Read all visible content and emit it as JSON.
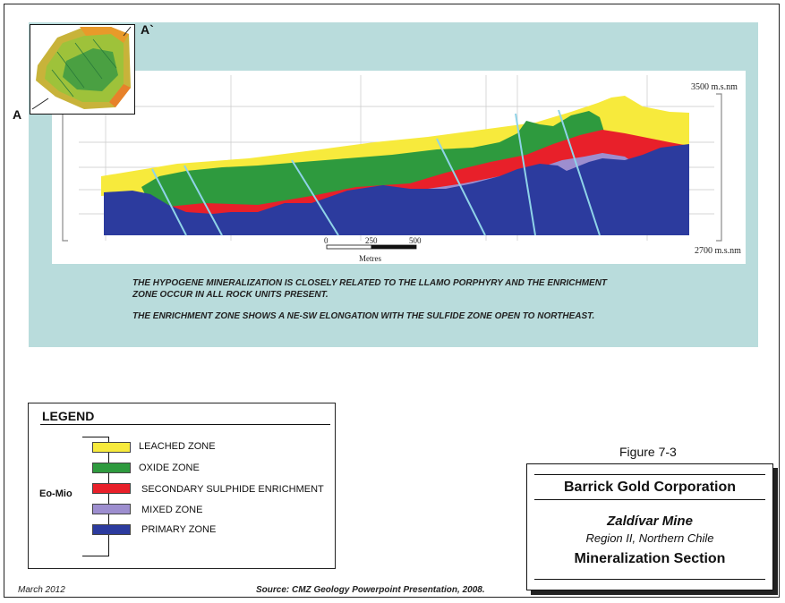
{
  "section": {
    "marker_left": "A",
    "marker_right": "A`",
    "elevation_top": "3500 m.s.nm",
    "elevation_bottom": "2700 m.s.nm",
    "scale_ticks": [
      "0",
      "250",
      "500"
    ],
    "scale_unit": "Metres"
  },
  "notes": [
    "THE HYPOGENE MINERALIZATION IS CLOSELY RELATED TO THE LLAMO PORPHYRY AND THE ENRICHMENT",
    "ZONE OCCUR IN ALL ROCK UNITS PRESENT.",
    "THE ENRICHMENT ZONE SHOWS A NE-SW ELONGATION WITH THE SULFIDE ZONE OPEN TO NORTHEAST."
  ],
  "legend": {
    "title": "LEGEND",
    "group_label": "Eo-Mio",
    "items": [
      {
        "label": "LEACHED ZONE",
        "color": "#f7ea3c"
      },
      {
        "label": "OXIDE ZONE",
        "color": "#2e9a3e"
      },
      {
        "label": "SECONDARY SULPHIDE ENRICHMENT",
        "color": "#e8202a"
      },
      {
        "label": "MIXED ZONE",
        "color": "#9d8ecf"
      },
      {
        "label": "PRIMARY ZONE",
        "color": "#2c3b9e"
      }
    ]
  },
  "figure_label": "Figure 7-3",
  "title_block": {
    "company": "Barrick Gold Corporation",
    "mine": "Zaldívar Mine",
    "region": "Region II, Northern Chile",
    "section_title": "Mineralization Section"
  },
  "footer": {
    "date": "March 2012",
    "source": "Source: CMZ Geology Powerpoint Presentation, 2008."
  }
}
